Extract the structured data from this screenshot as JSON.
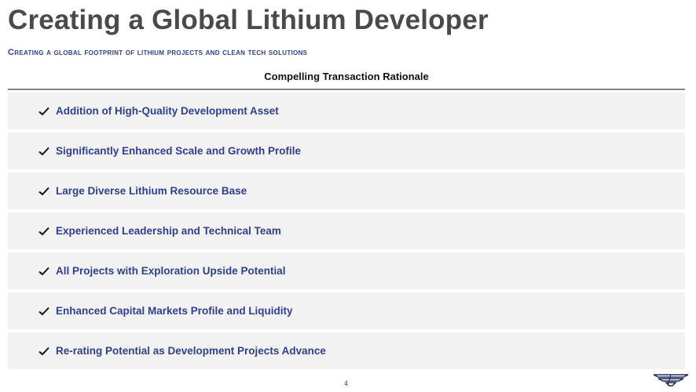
{
  "title": "Creating a Global Lithium Developer",
  "subtitle": "Creating a global footprint of lithium projects and clean tech solutions",
  "section_header": "Compelling Transaction Rationale",
  "rationale_items": [
    {
      "label": "Addition of High-Quality Development Asset",
      "icon": "checkmark-icon"
    },
    {
      "label": "Significantly Enhanced Scale and Growth Profile",
      "icon": "checkmark-icon"
    },
    {
      "label": "Large Diverse Lithium Resource Base",
      "icon": "checkmark-icon"
    },
    {
      "label": "Experienced Leadership and Technical Team",
      "icon": "checkmark-icon"
    },
    {
      "label": "All Projects with Exploration Upside Potential",
      "icon": "checkmark-icon"
    },
    {
      "label": "Enhanced Capital Markets Profile and Liquidity",
      "icon": "checkmark-icon"
    },
    {
      "label": "Re-rating Potential as Development Projects Advance",
      "icon": "checkmark-icon"
    }
  ],
  "page_number": "4",
  "colors": {
    "title": "#4a4a4a",
    "accent_blue": "#2f3f8f",
    "row_background": "#f2f2f2",
    "rule": "#7d8593"
  },
  "logo": {
    "icon": "wing-logo-icon"
  }
}
